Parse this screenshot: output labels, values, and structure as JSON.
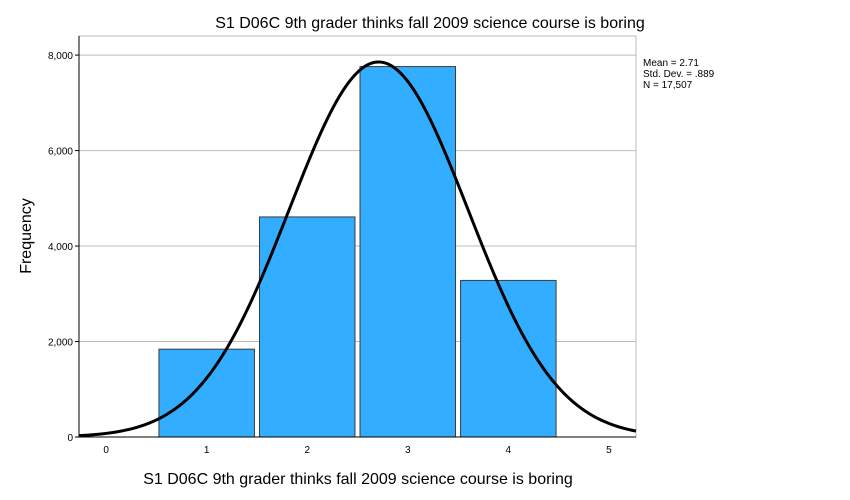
{
  "chart_data": {
    "type": "bar",
    "title": "S1 D06C 9th grader thinks fall 2009 science course is boring",
    "xlabel": "S1 D06C 9th grader thinks fall 2009 science course is boring",
    "ylabel": "Frequency",
    "categories": [
      "1",
      "2",
      "3",
      "4"
    ],
    "values": [
      1840,
      4610,
      7760,
      3280
    ],
    "xlim": [
      -0.27,
      5.27
    ],
    "ylim": [
      0,
      8400
    ],
    "x_ticks": [
      "0",
      "1",
      "2",
      "3",
      "4",
      "5"
    ],
    "x_tick_values": [
      0,
      1,
      2,
      3,
      4,
      5
    ],
    "y_ticks": [
      "0",
      "2,000",
      "4,000",
      "6,000",
      "8,000"
    ],
    "y_tick_values": [
      0,
      2000,
      4000,
      6000,
      8000
    ],
    "grid": true,
    "bar_color": "#33adff",
    "curve": {
      "type": "normal",
      "mean": 2.71,
      "sd": 0.889,
      "n": 17507,
      "bin_width": 1
    },
    "stats": {
      "mean": "Mean = 2.71",
      "sd": "Std. Dev. = .889",
      "n": "N = 17,507"
    }
  }
}
